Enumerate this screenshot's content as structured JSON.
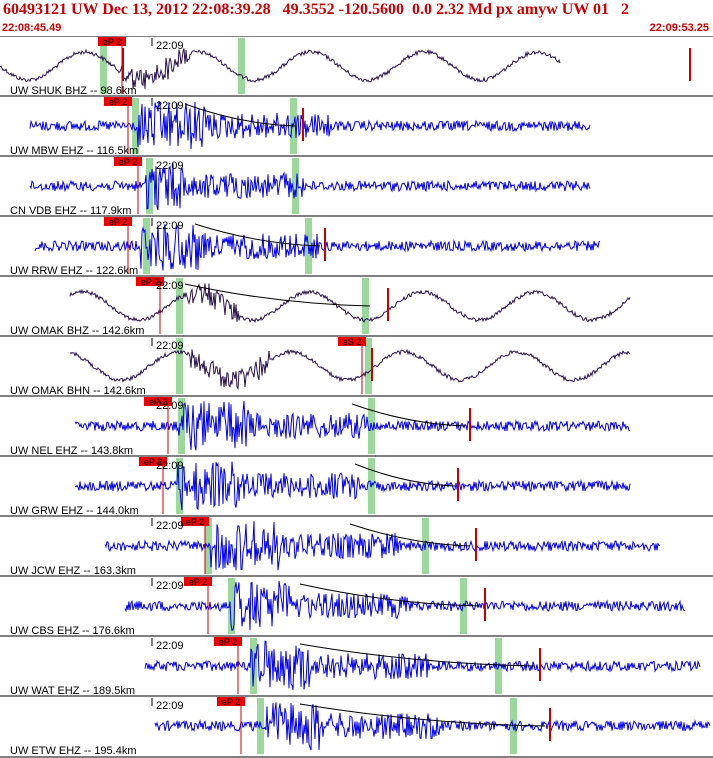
{
  "header": {
    "title": "60493121 UW Dec 13, 2012 22:08:39.28   49.3552 -120.5600  0.0 2.32 Md px amyw UW 01   2",
    "start_time": "22:08:45.49",
    "end_time": "22:09:53.25"
  },
  "colors": {
    "title": "#cc0000",
    "broadband_trace": "#2b1250",
    "short_period_trace": "#0000ee",
    "pick": "#cc0000",
    "pick_label_bg": "#ee0000",
    "marker_band": "#9bd89b",
    "separator": "#000000",
    "curve": "#000000"
  },
  "minute_label": "22:09",
  "channels": [
    {
      "label": "UW SHUK BHZ -- 98.6km",
      "pick": "eP 2",
      "kind": "broadband"
    },
    {
      "label": "UW MBW EHZ -- 116.5km",
      "pick": "eP 2",
      "kind": "short-period"
    },
    {
      "label": "CN VDB EHZ -- 117.9km",
      "pick": "eP 2",
      "kind": "short-period"
    },
    {
      "label": "UW RRW EHZ -- 122.6km",
      "pick": "eP 2",
      "kind": "short-period"
    },
    {
      "label": "UW OMAK BHZ -- 142.6km",
      "pick": "eP 2",
      "kind": "broadband"
    },
    {
      "label": "UW OMAK BHN -- 142.6km",
      "pick": "eS 2",
      "kind": "broadband"
    },
    {
      "label": "UW NEL EHZ -- 143.8km",
      "pick": "eP 2",
      "kind": "short-period"
    },
    {
      "label": "UW GRW EHZ -- 144.0km",
      "pick": "eP 2",
      "kind": "short-period"
    },
    {
      "label": "UW JCW EHZ -- 163.3km",
      "pick": "eP 2",
      "kind": "short-period"
    },
    {
      "label": "UW CBS EHZ -- 176.6km",
      "pick": "eP 2",
      "kind": "short-period"
    },
    {
      "label": "UW WAT EHZ -- 189.5km",
      "pick": "eP 2",
      "kind": "short-period"
    },
    {
      "label": "UW ETW EHZ -- 195.4km",
      "pick": "eP 2",
      "kind": "short-period"
    }
  ]
}
